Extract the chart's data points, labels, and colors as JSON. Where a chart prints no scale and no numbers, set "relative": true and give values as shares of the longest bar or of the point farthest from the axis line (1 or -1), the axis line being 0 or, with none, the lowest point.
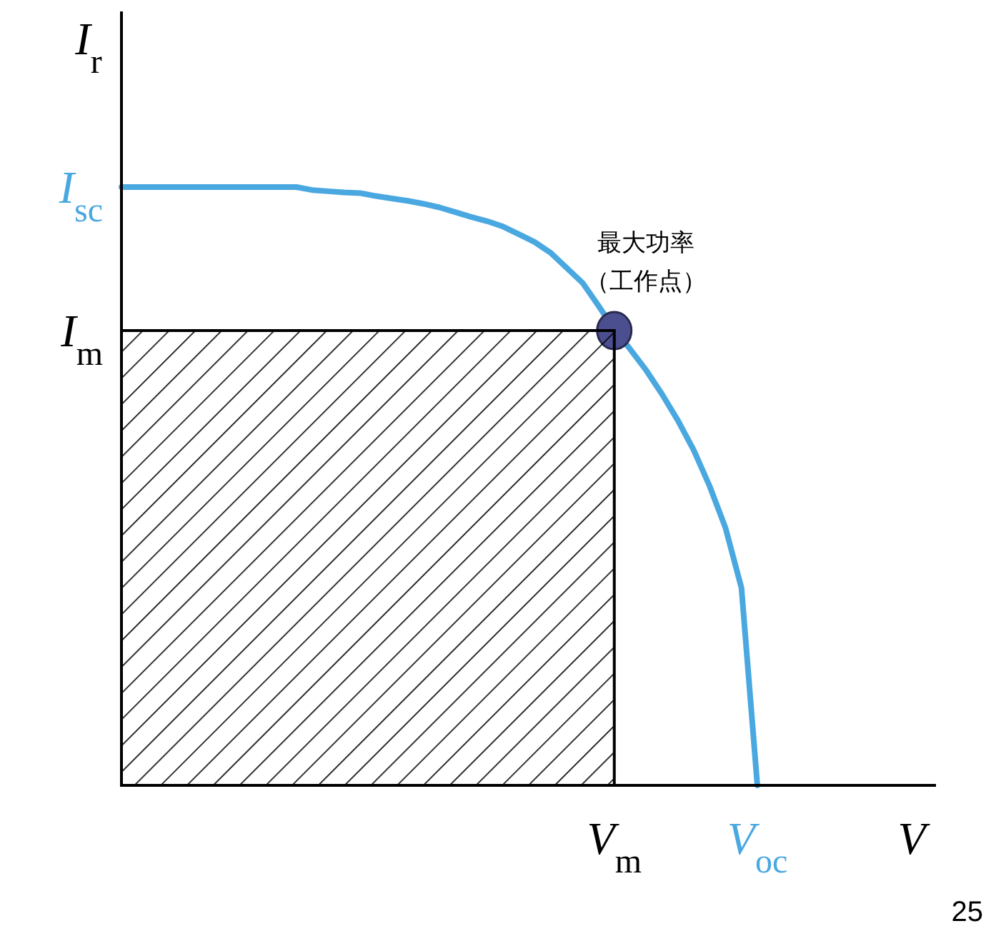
{
  "chart_data": {
    "type": "line",
    "relative": true,
    "xlabel": "V",
    "ylabel": "I$_{r}$",
    "categories": [
      null,
      null,
      null,
      null,
      null,
      null,
      null,
      null,
      null,
      null,
      null,
      null,
      null,
      null,
      null,
      null,
      null,
      null,
      null,
      null,
      null,
      null,
      null,
      null,
      null,
      null,
      null,
      null,
      null,
      null,
      null,
      "V$_{m}$",
      null,
      null,
      null,
      null,
      null,
      null,
      null,
      null,
      "V$_{oc}$"
    ],
    "series": [
      {
        "type": "area",
        "color": "#000000",
        "values": [
          0.76,
          0.76,
          0.76,
          0.76,
          0.76,
          0.76,
          0.76,
          0.76,
          0.76,
          0.76,
          0.76,
          0.76,
          0.76,
          0.76,
          0.76,
          0.76,
          0.76,
          0.76,
          0.76,
          0.76,
          0.76,
          0.76,
          0.76,
          0.76,
          0.76,
          0.76,
          0.76,
          0.76,
          0.76,
          0.76,
          0.76,
          0.76,
          null,
          null,
          null,
          null,
          null,
          null,
          null,
          null,
          null
        ]
      },
      {
        "color": "#4aa8e0",
        "values": [
          1,
          1,
          1,
          1,
          1,
          1,
          1,
          1,
          1,
          1,
          1,
          1,
          0.995,
          0.993,
          0.991,
          0.99,
          0.985,
          0.981,
          0.977,
          0.972,
          0.966,
          0.958,
          0.95,
          0.943,
          0.934,
          0.921,
          0.908,
          0.89,
          0.865,
          0.84,
          0.802,
          0.762,
          0.729,
          0.694,
          0.654,
          0.61,
          0.56,
          0.5,
          0.43,
          0.33,
          0
        ]
      },
      {
        "type": "scatter",
        "color": "#4b4f8f",
        "x": [
          "V$_{m}$"
        ],
        "values": [
          0.76
        ]
      }
    ],
    "annotations": [
      {
        "text": "最大功率（工作点）",
        "x": "V$_{m}$",
        "y": 0.76
      },
      "I$_{sc}$",
      "I$_{m}$",
      "25"
    ]
  }
}
